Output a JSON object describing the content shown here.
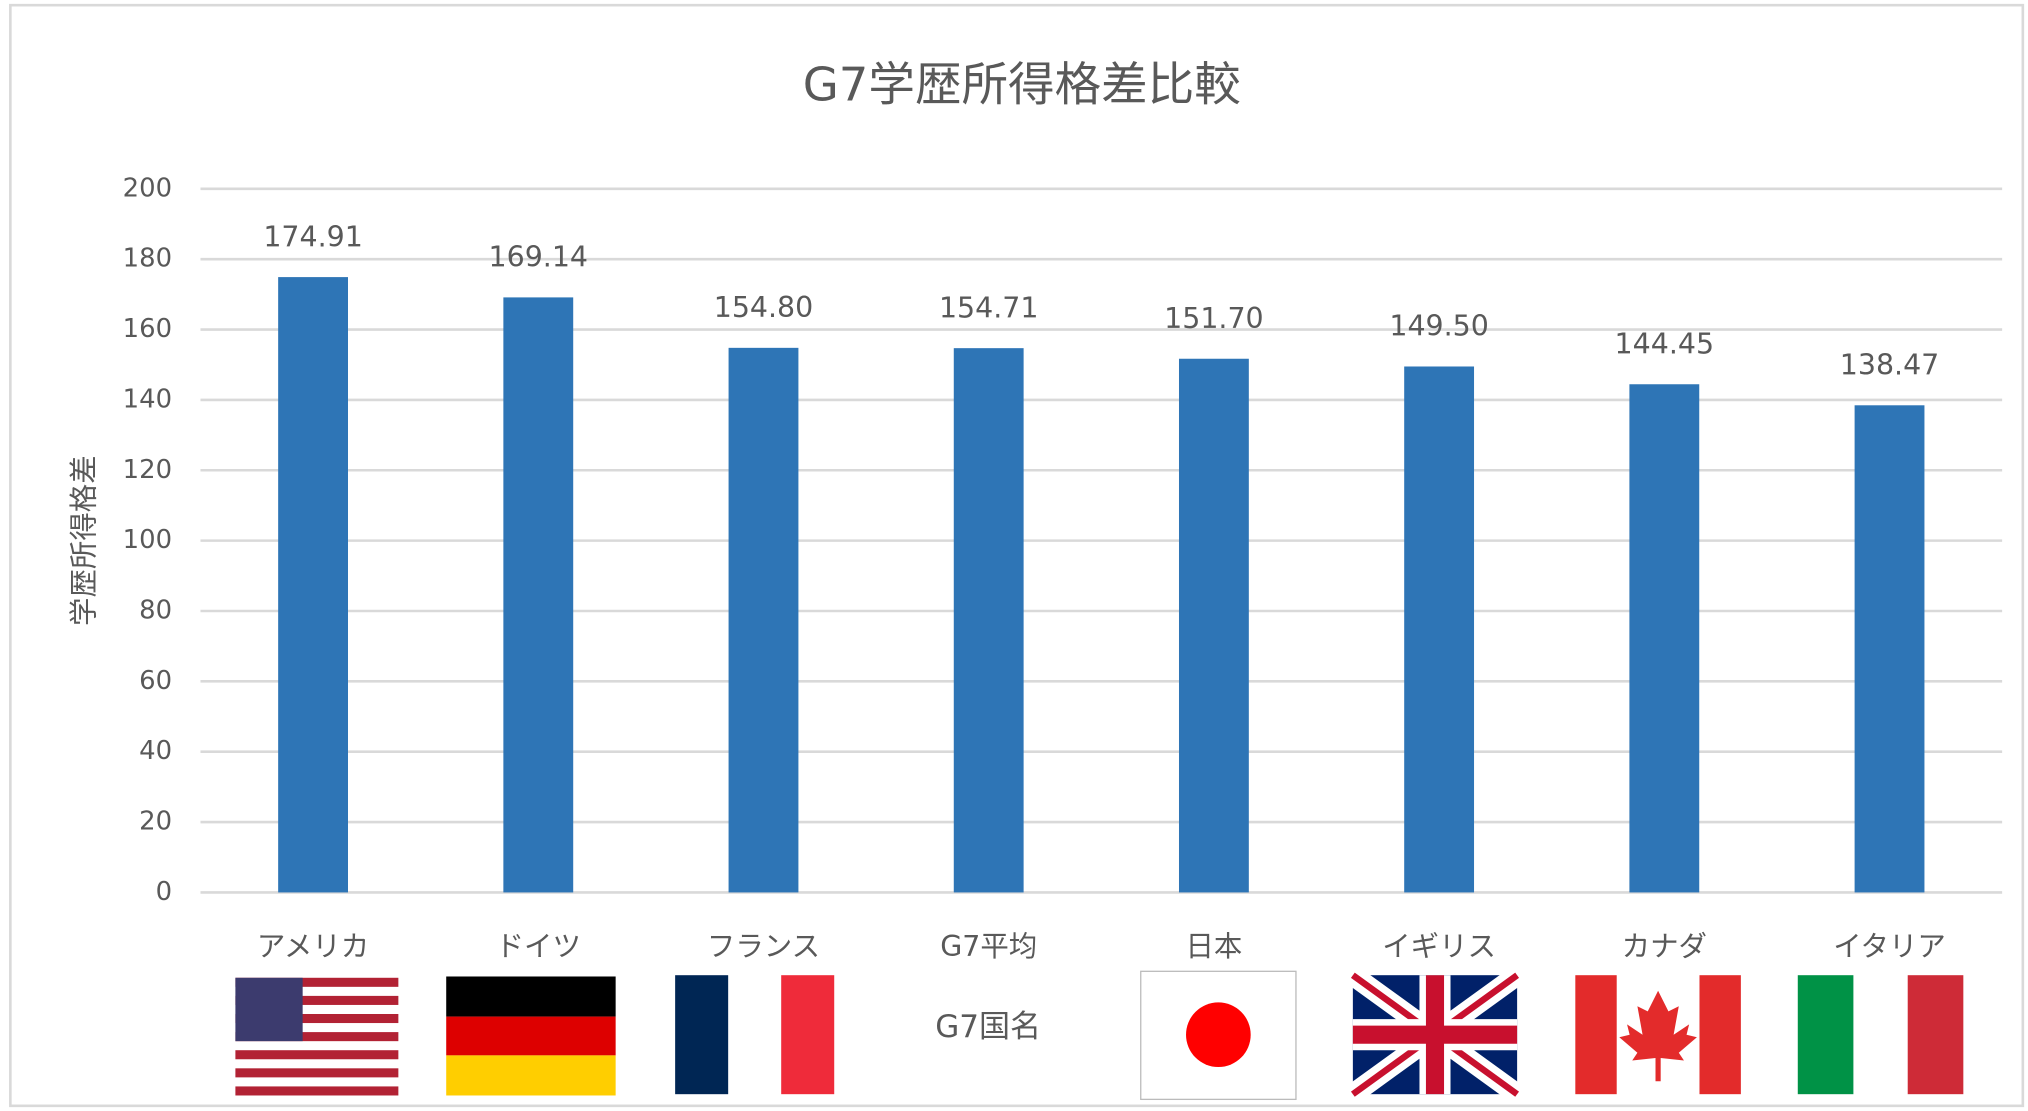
{
  "chart_data": {
    "type": "bar",
    "title": "G7学歴所得格差比較",
    "y_label": "学歴所得格差",
    "x_label": "G7国名",
    "categories": [
      "アメリカ",
      "ドイツ",
      "フランス",
      "G7平均",
      "日本",
      "イギリス",
      "カナダ",
      "イタリア"
    ],
    "values": [
      174.91,
      169.14,
      154.8,
      154.71,
      151.7,
      149.5,
      144.45,
      138.47
    ],
    "value_labels": [
      "174.91",
      "169.14",
      "154.80",
      "154.71",
      "151.70",
      "149.50",
      "144.45",
      "138.47"
    ],
    "color": "#2e75b6",
    "ylim": [
      0,
      200
    ],
    "yticks": [
      0,
      20,
      40,
      60,
      80,
      100,
      120,
      140,
      160,
      180,
      200
    ],
    "grid": true
  }
}
